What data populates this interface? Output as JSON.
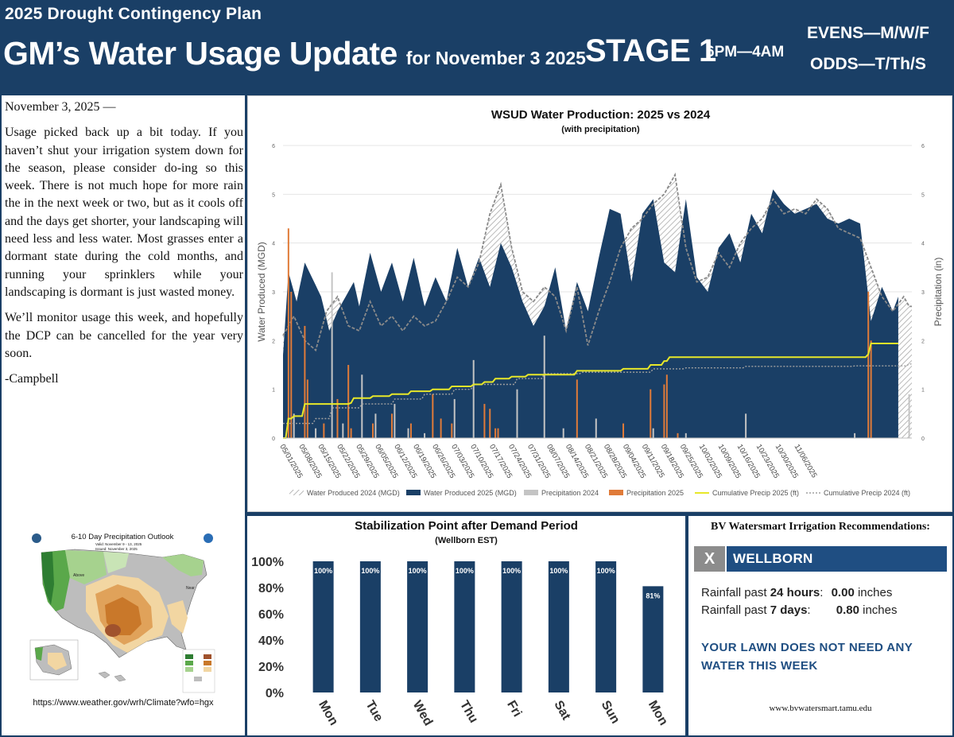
{
  "header": {
    "kicker": "2025 Drought Contingency Plan",
    "headline": "GM’s Water Usage Update",
    "headline_suffix": "for November 3 2025",
    "stage": "STAGE 1",
    "hours": "6PM—4AM",
    "schedule_evens": "EVENS—M/W/F",
    "schedule_odds": "ODDS—T/Th/S"
  },
  "letter": {
    "date_line": "November 3, 2025 —",
    "paragraph1": "Usage picked back up a bit today.  If you haven’t shut your irrigation system down for the season, please consider do-ing so this week.  There is not much hope for more rain the in the next week or two, but as it cools off and the days get shorter, your landscaping will need less and less water.  Most grasses enter a dormant state during the cold months, and running your sprinklers while your landscaping is dormant is just wasted money.",
    "paragraph2": "We’ll monitor usage this week, and hopefully the DCP can be cancelled for the year very soon.",
    "signature": "-Campbell"
  },
  "outlook_map": {
    "title": "6-10 Day Precipitation Outlook",
    "valid": "Valid: November 9 - 13, 2025",
    "issued": "Issued: November 3, 2025",
    "url": "https://www.weather.gov/wrh/Climate?wfo=hgx",
    "colors": {
      "above": "#5aa84a",
      "below": "#c9782a",
      "normal": "#bdbdbd"
    }
  },
  "chart_data": [
    {
      "type": "area",
      "title": "WSUD Water Production: 2025 vs 2024",
      "subtitle": "(with precipitation)",
      "ylabel": "Water Produced (MGD)",
      "y2label": "Precipitation (in)",
      "ylim": [
        0,
        6
      ],
      "y2lim": [
        0,
        6
      ],
      "yticks": [
        "0",
        "1",
        "2",
        "3",
        "4",
        "5",
        "6"
      ],
      "x_tick_labels": [
        "05/01/2025",
        "05/08/2025",
        "05/15/2025",
        "05/22/2025",
        "05/29/2025",
        "06/05/2025",
        "06/12/2025",
        "06/19/2025",
        "06/26/2025",
        "07/03/2025",
        "07/10/2025",
        "07/17/2025",
        "07/24/2025",
        "07/31/2025",
        "08/07/2025",
        "08/14/2025",
        "08/21/2025",
        "08/28/2025",
        "09/04/2025",
        "09/11/2025",
        "09/18/2025",
        "09/25/2025",
        "10/02/2025",
        "10/09/2025",
        "10/16/2025",
        "10/23/2025",
        "10/30/2025",
        "11/06/2025"
      ],
      "n_days": 193,
      "legend": [
        "Water Produced 2024 (MGD)",
        "Water Produced 2025 (MGD)",
        "Precipitation 2024",
        "Precipitation 2025",
        "Cumulative Precip 2025 (ft)",
        "Cumulative Precip 2024 (ft)"
      ],
      "legend_position": "bottom",
      "colors": {
        "wp2024": "#9a9a9a",
        "wp2025": "#1a3f66",
        "pr2024": "#c4c4c4",
        "pr2025": "#e07b39",
        "cum2025": "#e8e829",
        "cum2024": "#a0a0a0"
      },
      "series": {
        "wp2025_knots": [
          [
            0,
            1.7
          ],
          [
            2,
            3.4
          ],
          [
            5,
            2.8
          ],
          [
            8,
            3.6
          ],
          [
            14,
            2.9
          ],
          [
            17,
            2.2
          ],
          [
            20,
            2.6
          ],
          [
            23,
            2.9
          ],
          [
            26,
            3.2
          ],
          [
            28,
            2.7
          ],
          [
            32,
            3.8
          ],
          [
            36,
            3.0
          ],
          [
            40,
            3.6
          ],
          [
            44,
            2.8
          ],
          [
            48,
            3.7
          ],
          [
            52,
            2.7
          ],
          [
            56,
            3.3
          ],
          [
            60,
            2.8
          ],
          [
            64,
            3.9
          ],
          [
            68,
            3.1
          ],
          [
            72,
            3.7
          ],
          [
            76,
            3.1
          ],
          [
            80,
            4.0
          ],
          [
            84,
            3.5
          ],
          [
            88,
            2.8
          ],
          [
            92,
            2.3
          ],
          [
            96,
            2.7
          ],
          [
            100,
            3.5
          ],
          [
            104,
            2.2
          ],
          [
            108,
            3.2
          ],
          [
            112,
            2.6
          ],
          [
            116,
            3.7
          ],
          [
            120,
            4.7
          ],
          [
            124,
            4.6
          ],
          [
            128,
            3.2
          ],
          [
            132,
            4.6
          ],
          [
            136,
            4.9
          ],
          [
            140,
            3.6
          ],
          [
            144,
            3.4
          ],
          [
            148,
            4.9
          ],
          [
            152,
            3.3
          ],
          [
            156,
            3.0
          ],
          [
            160,
            3.9
          ],
          [
            164,
            4.2
          ],
          [
            168,
            3.6
          ],
          [
            172,
            4.6
          ],
          [
            176,
            4.2
          ],
          [
            180,
            5.1
          ],
          [
            184,
            4.8
          ],
          [
            188,
            4.6
          ],
          [
            192,
            4.7
          ],
          [
            196,
            4.8
          ],
          [
            200,
            4.5
          ],
          [
            204,
            4.4
          ],
          [
            208,
            4.5
          ],
          [
            212,
            4.4
          ],
          [
            216,
            2.4
          ],
          [
            220,
            3.1
          ],
          [
            224,
            2.6
          ],
          [
            226,
            2.9
          ]
        ],
        "wp2024_knots": [
          [
            0,
            2.1
          ],
          [
            4,
            2.5
          ],
          [
            8,
            2.0
          ],
          [
            12,
            1.8
          ],
          [
            16,
            2.6
          ],
          [
            20,
            2.9
          ],
          [
            24,
            2.3
          ],
          [
            28,
            2.2
          ],
          [
            32,
            2.8
          ],
          [
            36,
            2.3
          ],
          [
            40,
            2.5
          ],
          [
            44,
            2.2
          ],
          [
            48,
            2.5
          ],
          [
            52,
            2.3
          ],
          [
            56,
            2.4
          ],
          [
            60,
            2.8
          ],
          [
            64,
            3.3
          ],
          [
            68,
            3.1
          ],
          [
            72,
            3.6
          ],
          [
            76,
            4.6
          ],
          [
            80,
            5.2
          ],
          [
            84,
            3.9
          ],
          [
            88,
            3.0
          ],
          [
            92,
            2.8
          ],
          [
            96,
            3.1
          ],
          [
            100,
            2.9
          ],
          [
            104,
            2.2
          ],
          [
            108,
            3.1
          ],
          [
            112,
            1.9
          ],
          [
            116,
            2.6
          ],
          [
            120,
            3.2
          ],
          [
            124,
            3.9
          ],
          [
            128,
            4.3
          ],
          [
            132,
            4.5
          ],
          [
            136,
            4.8
          ],
          [
            140,
            5.0
          ],
          [
            144,
            5.4
          ],
          [
            148,
            3.9
          ],
          [
            152,
            3.2
          ],
          [
            156,
            3.3
          ],
          [
            160,
            3.8
          ],
          [
            164,
            3.5
          ],
          [
            168,
            4.0
          ],
          [
            172,
            4.3
          ],
          [
            176,
            4.5
          ],
          [
            180,
            4.9
          ],
          [
            184,
            4.6
          ],
          [
            188,
            4.7
          ],
          [
            192,
            4.6
          ],
          [
            196,
            4.9
          ],
          [
            200,
            4.7
          ],
          [
            204,
            4.3
          ],
          [
            208,
            4.2
          ],
          [
            212,
            4.1
          ],
          [
            216,
            3.5
          ],
          [
            220,
            2.9
          ],
          [
            224,
            2.6
          ],
          [
            228,
            2.9
          ],
          [
            230,
            2.7
          ]
        ],
        "pr2025_days": [
          [
            2,
            4.3
          ],
          [
            3,
            3.0
          ],
          [
            8,
            2.3
          ],
          [
            9,
            1.2
          ],
          [
            15,
            0.3
          ],
          [
            20,
            0.8
          ],
          [
            24,
            1.5
          ],
          [
            25,
            0.2
          ],
          [
            33,
            0.3
          ],
          [
            40,
            0.5
          ],
          [
            47,
            0.3
          ],
          [
            55,
            0.9
          ],
          [
            58,
            0.4
          ],
          [
            62,
            0.3
          ],
          [
            74,
            0.7
          ],
          [
            76,
            0.6
          ],
          [
            78,
            0.2
          ],
          [
            79,
            0.2
          ],
          [
            108,
            1.2
          ],
          [
            125,
            0.3
          ],
          [
            135,
            1.0
          ],
          [
            140,
            1.1
          ],
          [
            141,
            1.3
          ],
          [
            145,
            0.1
          ],
          [
            215,
            3.0
          ],
          [
            216,
            2.0
          ]
        ],
        "pr2024_days": [
          [
            4,
            0.5
          ],
          [
            12,
            0.2
          ],
          [
            18,
            3.4
          ],
          [
            22,
            0.3
          ],
          [
            29,
            1.3
          ],
          [
            34,
            0.5
          ],
          [
            41,
            0.7
          ],
          [
            46,
            0.2
          ],
          [
            52,
            0.1
          ],
          [
            63,
            0.8
          ],
          [
            70,
            1.6
          ],
          [
            86,
            1.0
          ],
          [
            96,
            2.1
          ],
          [
            103,
            0.2
          ],
          [
            115,
            0.4
          ],
          [
            136,
            0.2
          ],
          [
            148,
            0.1
          ],
          [
            170,
            0.5
          ],
          [
            210,
            0.1
          ],
          [
            230,
            0.9
          ]
        ],
        "cum2025_steps": [
          [
            0,
            0.0
          ],
          [
            2,
            0.4
          ],
          [
            4,
            0.45
          ],
          [
            8,
            0.7
          ],
          [
            25,
            0.72
          ],
          [
            26,
            0.82
          ],
          [
            33,
            0.86
          ],
          [
            40,
            0.9
          ],
          [
            47,
            0.96
          ],
          [
            55,
            1.0
          ],
          [
            62,
            1.06
          ],
          [
            70,
            1.1
          ],
          [
            74,
            1.15
          ],
          [
            78,
            1.22
          ],
          [
            84,
            1.26
          ],
          [
            90,
            1.3
          ],
          [
            108,
            1.38
          ],
          [
            125,
            1.42
          ],
          [
            135,
            1.5
          ],
          [
            140,
            1.58
          ],
          [
            142,
            1.66
          ],
          [
            215,
            1.72
          ],
          [
            216,
            1.94
          ],
          [
            227,
            1.94
          ]
        ],
        "cum2024_steps": [
          [
            0,
            0.3
          ],
          [
            12,
            0.4
          ],
          [
            18,
            0.62
          ],
          [
            29,
            0.7
          ],
          [
            41,
            0.8
          ],
          [
            52,
            0.9
          ],
          [
            63,
            1.0
          ],
          [
            70,
            1.1
          ],
          [
            86,
            1.22
          ],
          [
            96,
            1.32
          ],
          [
            110,
            1.35
          ],
          [
            136,
            1.42
          ],
          [
            148,
            1.44
          ],
          [
            170,
            1.47
          ],
          [
            210,
            1.48
          ],
          [
            230,
            1.52
          ]
        ]
      }
    },
    {
      "type": "bar",
      "title": "Stabilization Point after Demand Period",
      "subtitle": "(Wellborn EST)",
      "categories": [
        "Mon",
        "Tue",
        "Wed",
        "Thu",
        "Fri",
        "Sat",
        "Sun",
        "Mon"
      ],
      "values": [
        100,
        100,
        100,
        100,
        100,
        100,
        100,
        81
      ],
      "value_labels": [
        "100%",
        "100%",
        "100%",
        "100%",
        "100%",
        "100%",
        "100%",
        "81%"
      ],
      "yticks": [
        "0%",
        "20%",
        "40%",
        "60%",
        "80%",
        "100%"
      ],
      "ylim": [
        0,
        100
      ],
      "color": "#1a3f66"
    }
  ],
  "bv": {
    "title": "BV Watersmart Irrigation Recommendations:",
    "close_label": "X",
    "location": "WELLBORN",
    "row1_prefix": "Rainfall past ",
    "row1_period": "24 hours",
    "row1_sep": ":",
    "row1_value": "0.00",
    "row1_unit": " inches",
    "row2_prefix": "Rainfall past ",
    "row2_period": "7 days",
    "row2_sep": ":",
    "row2_value": "0.80",
    "row2_unit": " inches",
    "message": "YOUR LAWN DOES NOT NEED ANY WATER THIS WEEK",
    "url": "www.bvwatersmart.tamu.edu"
  }
}
